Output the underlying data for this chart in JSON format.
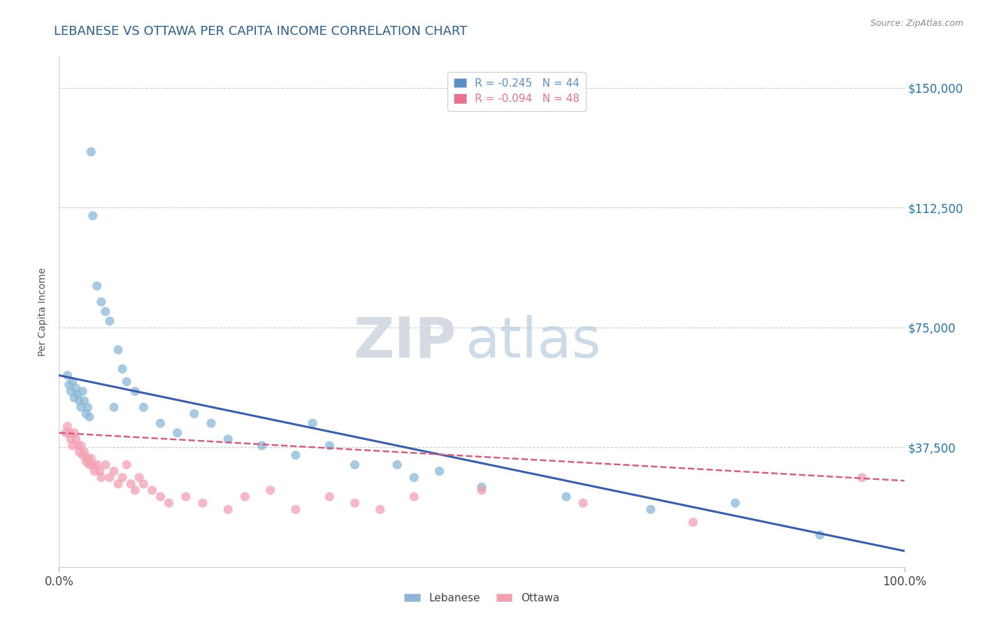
{
  "title": "LEBANESE VS OTTAWA PER CAPITA INCOME CORRELATION CHART",
  "source_text": "Source: ZipAtlas.com",
  "xlabel": "",
  "ylabel": "Per Capita Income",
  "xlim": [
    0,
    1.0
  ],
  "ylim": [
    0,
    160000
  ],
  "yticks": [
    0,
    37500,
    75000,
    112500,
    150000
  ],
  "ytick_labels": [
    "",
    "$37,500",
    "$75,000",
    "$112,500",
    "$150,000"
  ],
  "xtick_labels": [
    "0.0%",
    "100.0%"
  ],
  "legend_entries": [
    {
      "label": "R = -0.245   N = 44",
      "color": "#5b8ec4"
    },
    {
      "label": "R = -0.094   N = 48",
      "color": "#e87090"
    }
  ],
  "bottom_legend": [
    {
      "label": "Lebanese",
      "color": "#8ab4d8"
    },
    {
      "label": "Ottawa",
      "color": "#f4a0b0"
    }
  ],
  "title_color": "#2c5f8a",
  "background_color": "#ffffff",
  "grid_color": "#cccccc",
  "watermark_zip": "ZIP",
  "watermark_atlas": "atlas",
  "lebanese_scatter": {
    "x": [
      0.01,
      0.012,
      0.014,
      0.016,
      0.018,
      0.02,
      0.022,
      0.024,
      0.026,
      0.028,
      0.03,
      0.032,
      0.034,
      0.036,
      0.038,
      0.04,
      0.045,
      0.05,
      0.055,
      0.06,
      0.065,
      0.07,
      0.075,
      0.08,
      0.09,
      0.1,
      0.12,
      0.14,
      0.16,
      0.18,
      0.2,
      0.24,
      0.28,
      0.3,
      0.32,
      0.35,
      0.4,
      0.42,
      0.45,
      0.5,
      0.6,
      0.7,
      0.8,
      0.9
    ],
    "y": [
      60000,
      57000,
      55000,
      58000,
      53000,
      56000,
      54000,
      52000,
      50000,
      55000,
      52000,
      48000,
      50000,
      47000,
      130000,
      110000,
      88000,
      83000,
      80000,
      77000,
      50000,
      68000,
      62000,
      58000,
      55000,
      50000,
      45000,
      42000,
      48000,
      45000,
      40000,
      38000,
      35000,
      45000,
      38000,
      32000,
      32000,
      28000,
      30000,
      25000,
      22000,
      18000,
      20000,
      10000
    ]
  },
  "ottawa_scatter": {
    "x": [
      0.008,
      0.01,
      0.012,
      0.014,
      0.016,
      0.018,
      0.02,
      0.022,
      0.024,
      0.026,
      0.028,
      0.03,
      0.032,
      0.034,
      0.036,
      0.038,
      0.04,
      0.042,
      0.045,
      0.048,
      0.05,
      0.055,
      0.06,
      0.065,
      0.07,
      0.075,
      0.08,
      0.085,
      0.09,
      0.095,
      0.1,
      0.11,
      0.12,
      0.13,
      0.15,
      0.17,
      0.2,
      0.22,
      0.25,
      0.28,
      0.32,
      0.35,
      0.38,
      0.42,
      0.5,
      0.62,
      0.75,
      0.95
    ],
    "y": [
      42000,
      44000,
      42000,
      40000,
      38000,
      42000,
      40000,
      38000,
      36000,
      38000,
      35000,
      36000,
      33000,
      34000,
      32000,
      34000,
      32000,
      30000,
      32000,
      30000,
      28000,
      32000,
      28000,
      30000,
      26000,
      28000,
      32000,
      26000,
      24000,
      28000,
      26000,
      24000,
      22000,
      20000,
      22000,
      20000,
      18000,
      22000,
      24000,
      18000,
      22000,
      20000,
      18000,
      22000,
      24000,
      20000,
      14000,
      28000
    ]
  },
  "lebanese_line": {
    "x0": 0.0,
    "x1": 1.0,
    "y0": 60000,
    "y1": 5000
  },
  "ottawa_line": {
    "x0": 0.0,
    "x1": 1.0,
    "y0": 42000,
    "y1": 27000
  },
  "scatter_color_lebanese": "#8ab8d8",
  "scatter_color_ottawa": "#f4a0b4",
  "line_color_lebanese": "#3a5fa8",
  "line_color_ottawa": "#d06080"
}
